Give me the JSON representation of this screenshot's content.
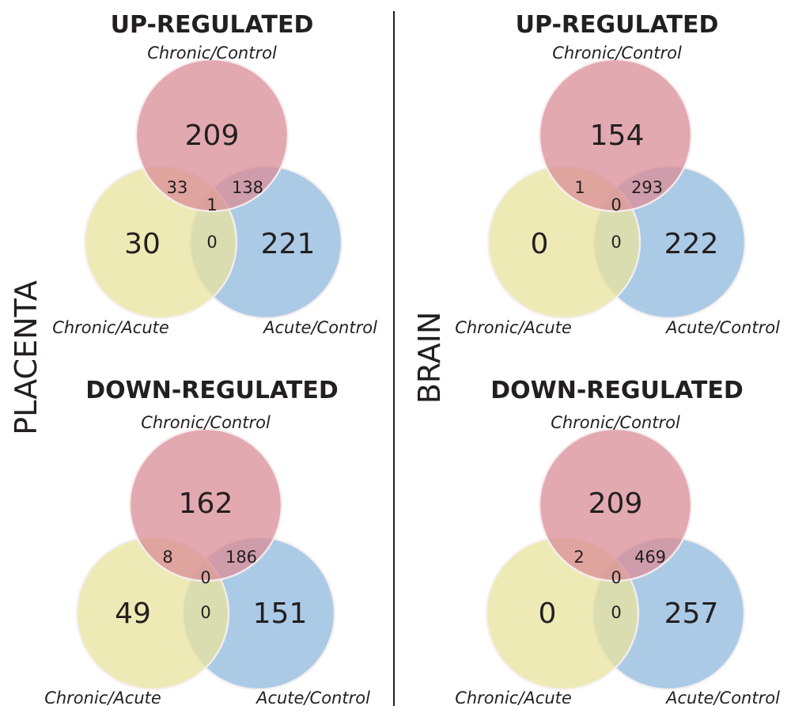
{
  "colors": {
    "chronic_control": "#d98c95",
    "chronic_acute": "#e8e39e",
    "acute_control": "#8fb8dc",
    "overlap_stroke": "#f6eef0",
    "divider": "#231f20"
  },
  "tissues": [
    {
      "label": "PLACENTA",
      "panels": [
        {
          "title": "UP-REGULATED",
          "sets": [
            "Chronic/Control",
            "Chronic/Acute",
            "Acute/Control"
          ],
          "counts": {
            "only_chronic_control": "209",
            "only_chronic_acute": "30",
            "only_acute_control": "221",
            "chronic_control_and_chronic_acute": "33",
            "chronic_control_and_acute_control": "138",
            "chronic_acute_and_acute_control": "0",
            "all_three": "1"
          }
        },
        {
          "title": "DOWN-REGULATED",
          "sets": [
            "Chronic/Control",
            "Chronic/Acute",
            "Acute/Control"
          ],
          "counts": {
            "only_chronic_control": "162",
            "only_chronic_acute": "49",
            "only_acute_control": "151",
            "chronic_control_and_chronic_acute": "8",
            "chronic_control_and_acute_control": "186",
            "chronic_acute_and_acute_control": "0",
            "all_three": "0"
          }
        }
      ]
    },
    {
      "label": "BRAIN",
      "panels": [
        {
          "title": "UP-REGULATED",
          "sets": [
            "Chronic/Control",
            "Chronic/Acute",
            "Acute/Control"
          ],
          "counts": {
            "only_chronic_control": "154",
            "only_chronic_acute": "0",
            "only_acute_control": "222",
            "chronic_control_and_chronic_acute": "1",
            "chronic_control_and_acute_control": "293",
            "chronic_acute_and_acute_control": "0",
            "all_three": "0"
          }
        },
        {
          "title": "DOWN-REGULATED",
          "sets": [
            "Chronic/Control",
            "Chronic/Acute",
            "Acute/Control"
          ],
          "counts": {
            "only_chronic_control": "209",
            "only_chronic_acute": "0",
            "only_acute_control": "257",
            "chronic_control_and_chronic_acute": "2",
            "chronic_control_and_acute_control": "469",
            "chronic_acute_and_acute_control": "0",
            "all_three": "0"
          }
        }
      ]
    }
  ]
}
